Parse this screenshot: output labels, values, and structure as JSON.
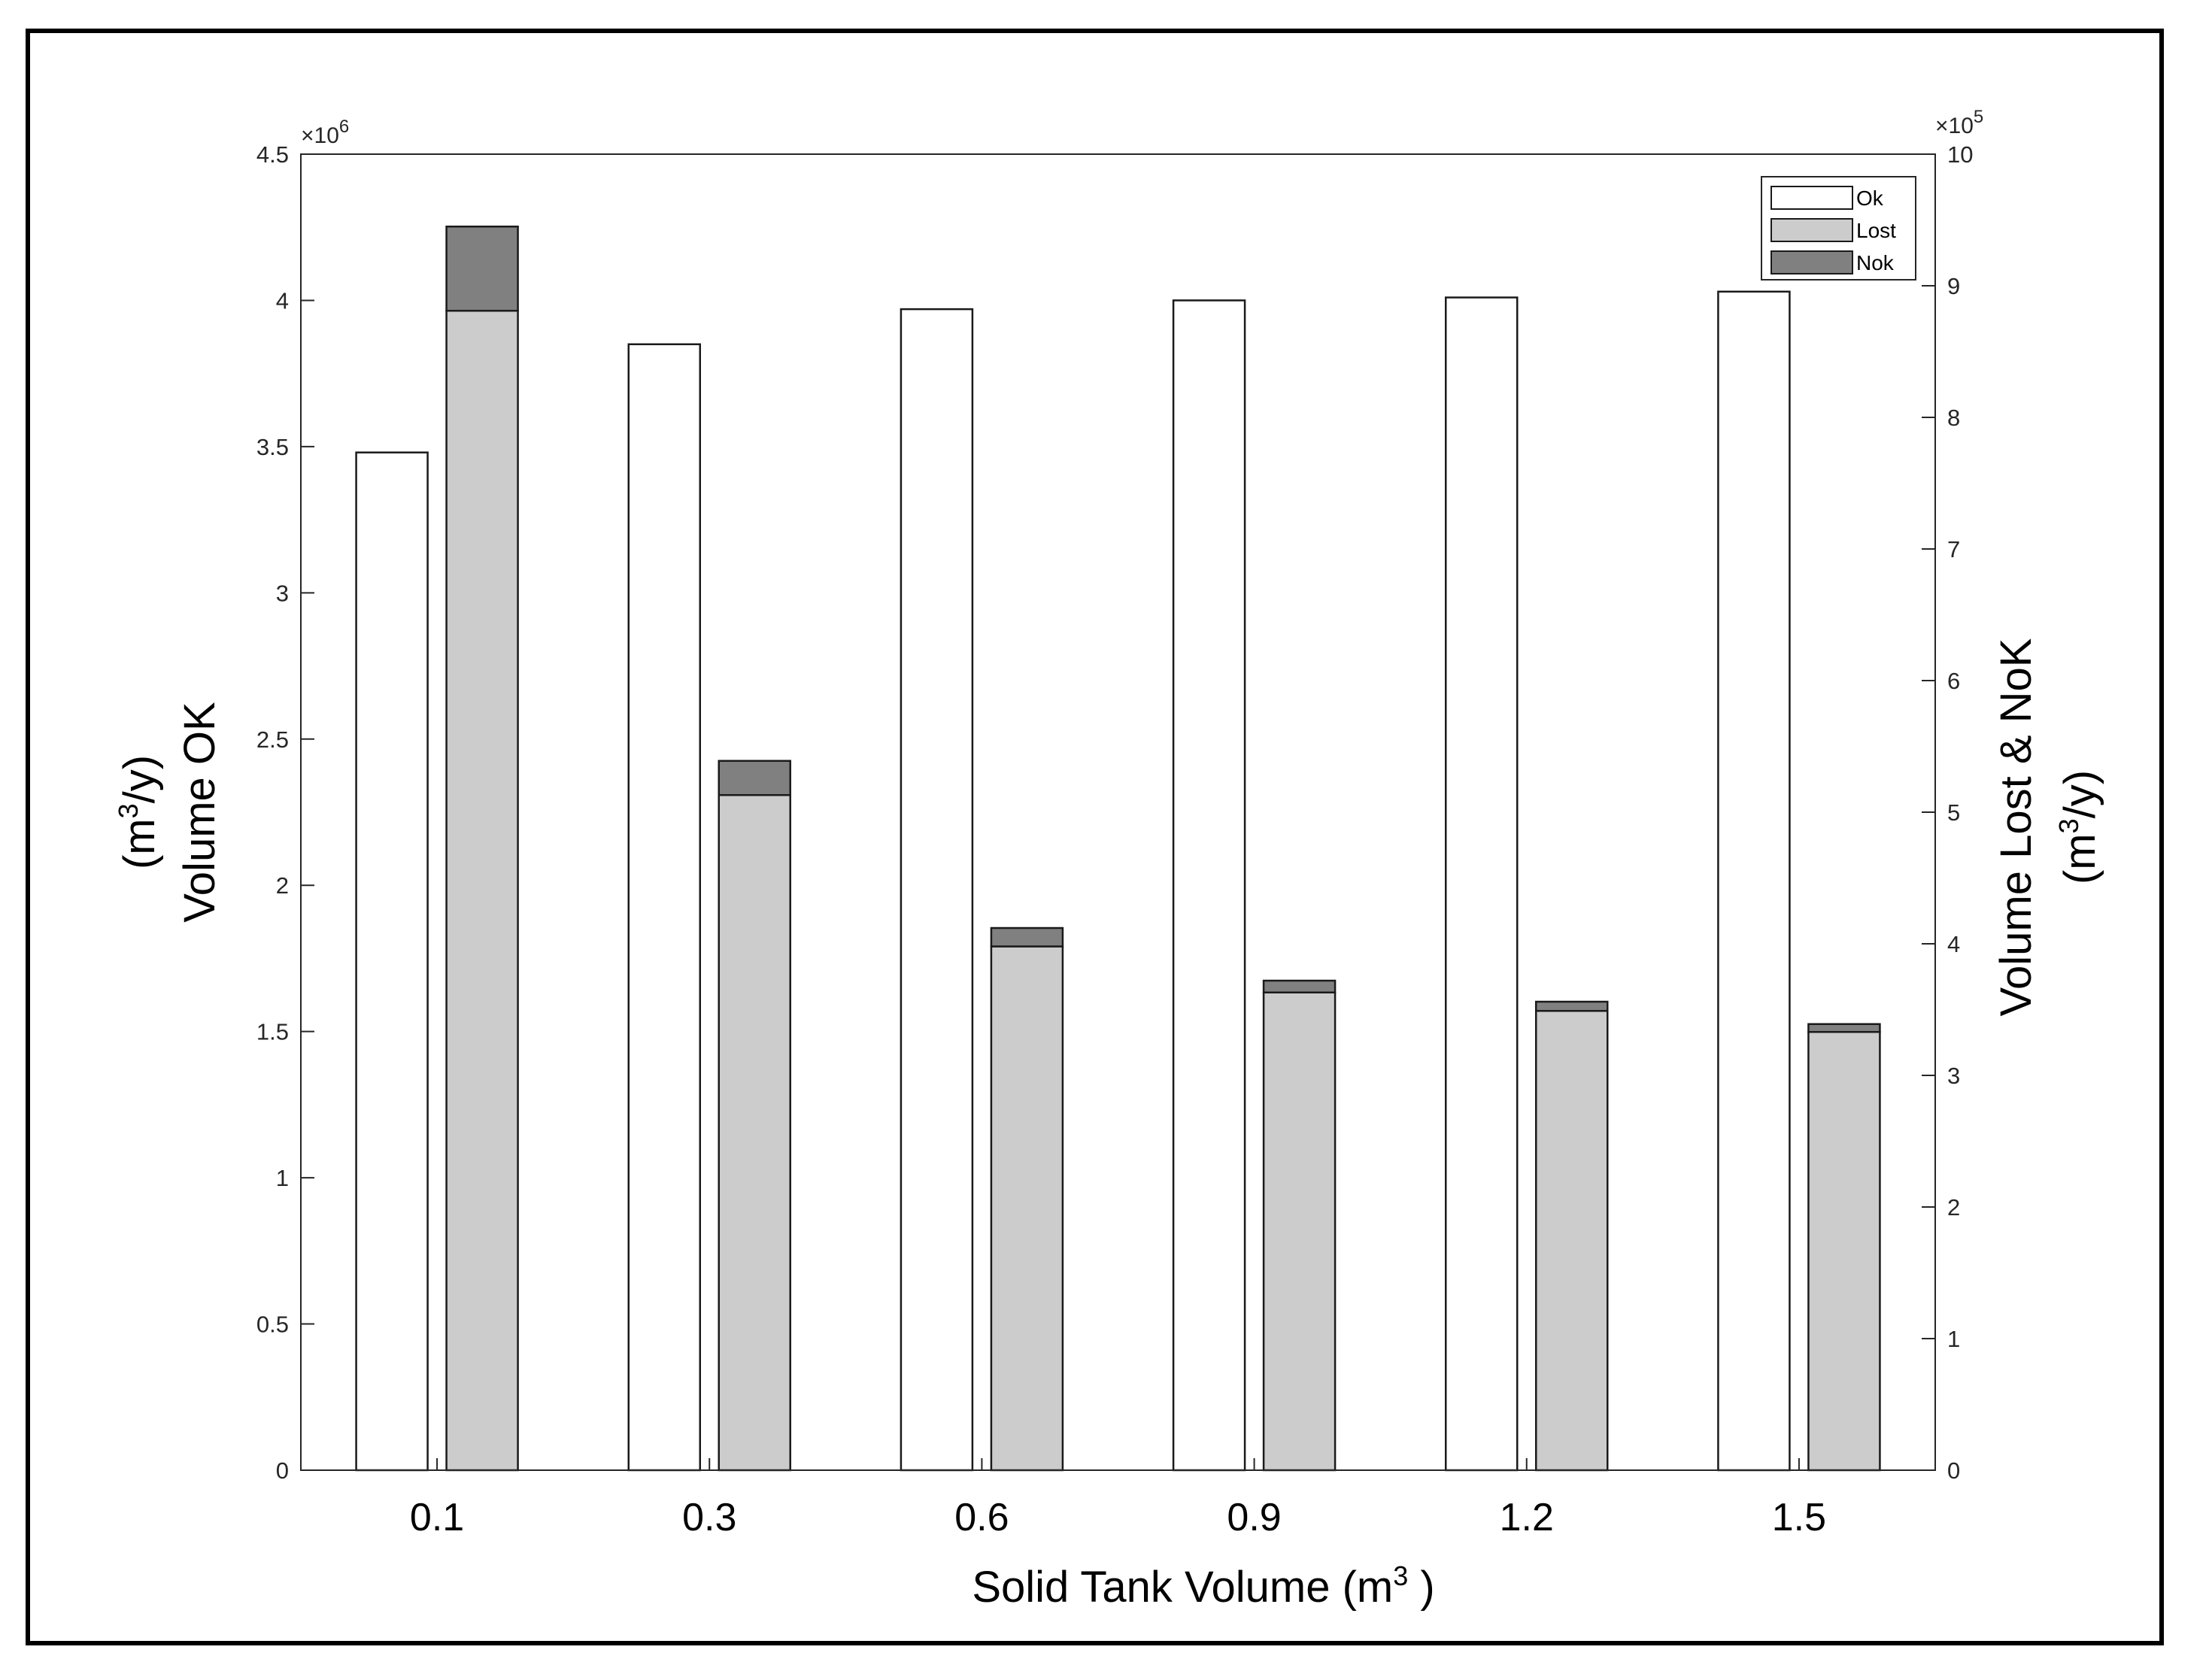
{
  "chart_data": {
    "type": "bar",
    "categories": [
      "0.1",
      "0.3",
      "0.6",
      "0.9",
      "1.2",
      "1.5"
    ],
    "xlabel_main": "Solid Tank Volume (m",
    "xlabel_sup": "3",
    "xlabel_end": " )",
    "left_axis": {
      "label_line1_open": "(m",
      "label_line1_sup": "3",
      "label_line1_close": "/y)",
      "label_line2": "Volume OK",
      "ylim": [
        0,
        4.5
      ],
      "ticks": [
        "0",
        "0.5",
        "1",
        "1.5",
        "2",
        "2.5",
        "3",
        "3.5",
        "4",
        "4.5"
      ],
      "exponent_base": "×10",
      "exponent": "6"
    },
    "right_axis": {
      "label_line1": "Volume Lost & NoK",
      "label_line2_open": "(m",
      "label_line2_sup": "3",
      "label_line2_close": "/y)",
      "ylim": [
        0,
        10
      ],
      "ticks": [
        "0",
        "1",
        "2",
        "3",
        "4",
        "5",
        "6",
        "7",
        "8",
        "9",
        "10"
      ],
      "exponent_base": "×10",
      "exponent": "5"
    },
    "series": [
      {
        "name": "Ok",
        "axis": "left",
        "color": "#ffffff",
        "values": [
          3480000,
          3850000,
          3970000,
          4000000,
          4010000,
          4030000
        ]
      },
      {
        "name": "Lost",
        "axis": "right",
        "stack": "right",
        "color": "#cccccc",
        "values": [
          881000,
          513000,
          398000,
          363000,
          349000,
          333000
        ]
      },
      {
        "name": "Nok",
        "axis": "right",
        "stack": "right",
        "color": "#808080",
        "values": [
          64000,
          26000,
          14000,
          9000,
          7000,
          6000
        ]
      }
    ],
    "legend": {
      "position": "top-right",
      "entries": [
        "Ok",
        "Lost",
        "Nok"
      ]
    },
    "grid": false
  }
}
